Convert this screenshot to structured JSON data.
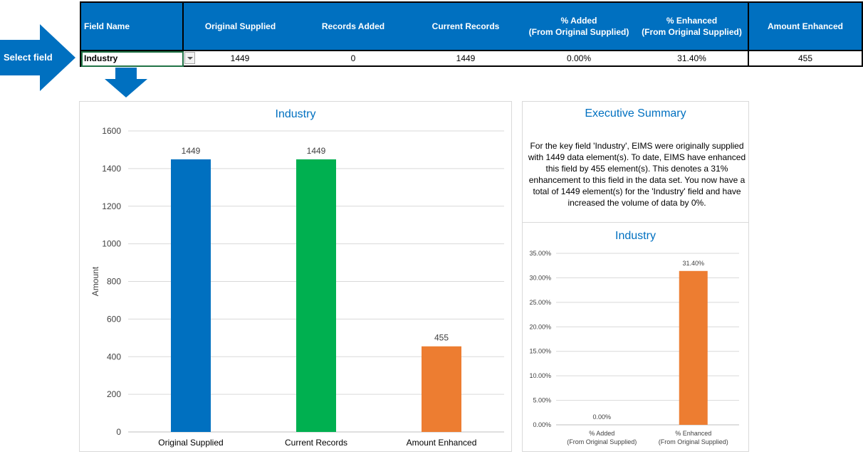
{
  "select_label": "Select field",
  "table": {
    "headers": {
      "field_name": "Field Name",
      "original_supplied": "Original Supplied",
      "records_added": "Records Added",
      "current_records": "Current Records",
      "pct_added_1": "% Added",
      "pct_added_2": "(From Original Supplied)",
      "pct_enhanced_1": "% Enhanced",
      "pct_enhanced_2": "(From Original Supplied)",
      "amount_enhanced": "Amount Enhanced"
    },
    "row": {
      "field_name": "Industry",
      "original_supplied": "1449",
      "records_added": "0",
      "current_records": "1449",
      "pct_added": "0.00%",
      "pct_enhanced": "31.40%",
      "amount_enhanced": "455"
    }
  },
  "colors": {
    "header_blue": "#0070c0",
    "bar_blue": "#0070c0",
    "bar_green": "#00b050",
    "bar_orange": "#ed7d31",
    "title_blue": "#0070c0"
  },
  "summary": {
    "title": "Executive Summary",
    "text": "For the key field 'Industry', EIMS were originally supplied with 1449 data element(s). To date, EIMS have enhanced this field by 455 element(s). This denotes a 31% enhancement to this field in the data set. You now have a total of 1449 element(s) for the 'Industry' field and have increased the volume of data by 0%."
  },
  "chart_data": [
    {
      "type": "bar",
      "title": "Industry",
      "ylabel": "Amount",
      "categories": [
        "Original Supplied",
        "Current Records",
        "Amount Enhanced"
      ],
      "values": [
        1449,
        1449,
        455
      ],
      "data_labels": [
        "1449",
        "1449",
        "455"
      ],
      "colors": [
        "#0070c0",
        "#00b050",
        "#ed7d31"
      ],
      "ylim": [
        0,
        1600
      ],
      "yticks": [
        "0",
        "200",
        "400",
        "600",
        "800",
        "1000",
        "1200",
        "1400",
        "1600"
      ],
      "grid": true
    },
    {
      "type": "bar",
      "title": "Industry",
      "categories": [
        [
          "% Added",
          "(From Original Supplied)"
        ],
        [
          "% Enhanced",
          "(From Original Supplied)"
        ]
      ],
      "values": [
        0.0,
        31.4
      ],
      "data_labels": [
        "0.00%",
        "31.40%"
      ],
      "colors": [
        "#ed7d31",
        "#ed7d31"
      ],
      "ylim": [
        0,
        35
      ],
      "yticks": [
        "0.00%",
        "5.00%",
        "10.00%",
        "15.00%",
        "20.00%",
        "25.00%",
        "30.00%",
        "35.00%"
      ],
      "grid": true
    }
  ]
}
